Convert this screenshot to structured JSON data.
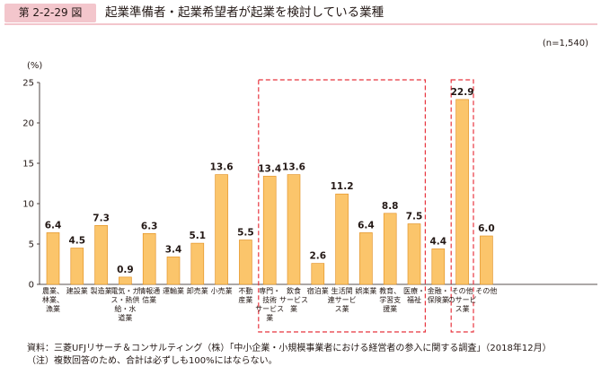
{
  "figure": {
    "number": "第 2-2-29 図",
    "title": "起業準備者・起業希望者が起業を検討している業種",
    "n_note": "(n=1,540)"
  },
  "chart_data": {
    "type": "bar",
    "ylabel": "(%)",
    "ylim": [
      0,
      25
    ],
    "yticks": [
      0,
      5,
      10,
      15,
      20,
      25
    ],
    "grid": false,
    "bar_color": "#fbc56b",
    "bar_edge_color": "#e08a18",
    "highlight_color": "#e8353f",
    "categories": [
      [
        "農業、",
        "林業、",
        "漁業"
      ],
      [
        "建設業"
      ],
      [
        "製造業"
      ],
      [
        "電気・ガ",
        "ス・熱供",
        "給・水",
        "道業"
      ],
      [
        "情報通",
        "信業"
      ],
      [
        "運輸業"
      ],
      [
        "卸売業"
      ],
      [
        "小売業"
      ],
      [
        "不動",
        "産業"
      ],
      [
        "専門・",
        "技術",
        "サービス",
        "業"
      ],
      [
        "飲食",
        "サービス",
        "業"
      ],
      [
        "宿泊業"
      ],
      [
        "生活関",
        "連サービ",
        "ス業"
      ],
      [
        "娯楽業"
      ],
      [
        "教育、",
        "学習支",
        "援業"
      ],
      [
        "医療・",
        "福祉"
      ],
      [
        "金融・",
        "保険業"
      ],
      [
        "その他",
        "のサービ",
        "ス業"
      ],
      [
        "その他"
      ]
    ],
    "values": [
      6.4,
      4.5,
      7.3,
      0.9,
      6.3,
      3.4,
      5.1,
      13.6,
      5.5,
      13.4,
      13.6,
      2.6,
      11.2,
      6.4,
      8.8,
      7.5,
      4.4,
      22.9,
      6.0
    ],
    "value_labels": [
      "6.4",
      "4.5",
      "7.3",
      "0.9",
      "6.3",
      "3.4",
      "5.1",
      "13.6",
      "5.5",
      "13.4",
      "13.6",
      "2.6",
      "11.2",
      "6.4",
      "8.8",
      "7.5",
      "4.4",
      "22.9",
      "6.0"
    ],
    "highlight_groups": [
      [
        9,
        15
      ],
      [
        17,
        17
      ]
    ]
  },
  "footer": {
    "source": "資料：三菱UFJリサーチ＆コンサルティング（株）「中小企業・小規模事業者における経営者の参入に関する調査」（2018年12月）",
    "note": "（注）複数回答のため、合計は必ずしも100%にはならない。"
  }
}
